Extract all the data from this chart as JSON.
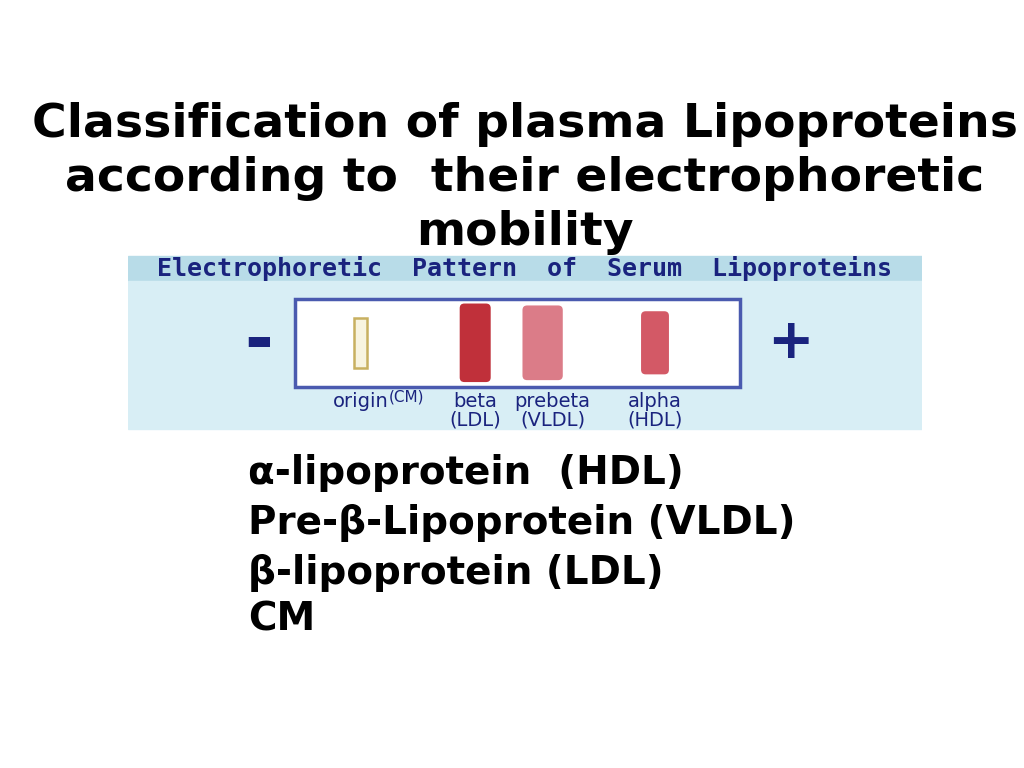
{
  "title": "Classification of plasma Lipoproteins\naccording to  their electrophoretic\nmobility",
  "title_fontsize": 34,
  "title_color": "#000000",
  "subtitle": "Electrophoretic  Pattern  of  Serum  Lipoproteins",
  "subtitle_color": "#1a237e",
  "subtitle_bg": "#b8dce8",
  "subtitle_fontsize": 18,
  "gel_bg": "#d8eef5",
  "gel_box_color": "#4a5aaf",
  "minus_plus_color": "#1a237e",
  "label_color": "#1a237e",
  "list_items": [
    "α-lipoprotein  (HDL)",
    "Pre-β-Lipoprotein (VLDL)",
    "β-lipoprotein (LDL)",
    "CM"
  ],
  "list_fontsize": 28,
  "list_color": "#000000",
  "bg_color": "#ffffff"
}
